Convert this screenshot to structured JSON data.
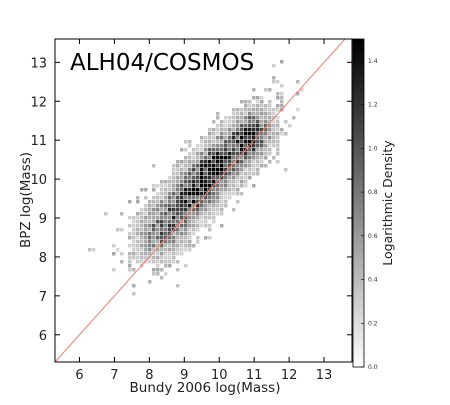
{
  "chart_data": {
    "type": "heatmap",
    "title": "ALH04/COSMOS",
    "xlabel": "Bundy 2006 log(Mass)",
    "ylabel": "BPZ log(Mass)",
    "xlim": [
      5.3,
      13.8
    ],
    "ylim": [
      5.3,
      13.6
    ],
    "x_ticks": [
      "6",
      "7",
      "8",
      "9",
      "10",
      "11",
      "12",
      "13"
    ],
    "x_tick_values": [
      6,
      7,
      8,
      9,
      10,
      11,
      12,
      13
    ],
    "y_ticks": [
      "6",
      "7",
      "8",
      "9",
      "10",
      "11",
      "12",
      "13"
    ],
    "y_tick_values": [
      6,
      7,
      8,
      9,
      10,
      11,
      12,
      13
    ],
    "reference_line": {
      "from": [
        5.3,
        5.3
      ],
      "to": [
        13.6,
        13.6
      ],
      "color": "#f08070"
    },
    "colorbar": {
      "label": "Logarithmic Density",
      "range": [
        0.0,
        1.5
      ],
      "ticks": [
        "0.0",
        "0.2",
        "0.4",
        "0.6",
        "0.8",
        "1.0",
        "1.2",
        "1.4"
      ],
      "tick_values": [
        0.0,
        0.2,
        0.4,
        0.6,
        0.8,
        1.0,
        1.2,
        1.4
      ],
      "colormap": [
        "#ffffff",
        "#000000"
      ]
    },
    "density_model": {
      "core": {
        "x": 9.7,
        "y": 10.05,
        "spread_along": 1.3,
        "spread_across": 0.42
      },
      "upper_tail": {
        "x": 11.0,
        "y": 11.1
      },
      "lower_tail": {
        "x": 8.3,
        "y": 8.6
      },
      "grid": "gray"
    }
  }
}
